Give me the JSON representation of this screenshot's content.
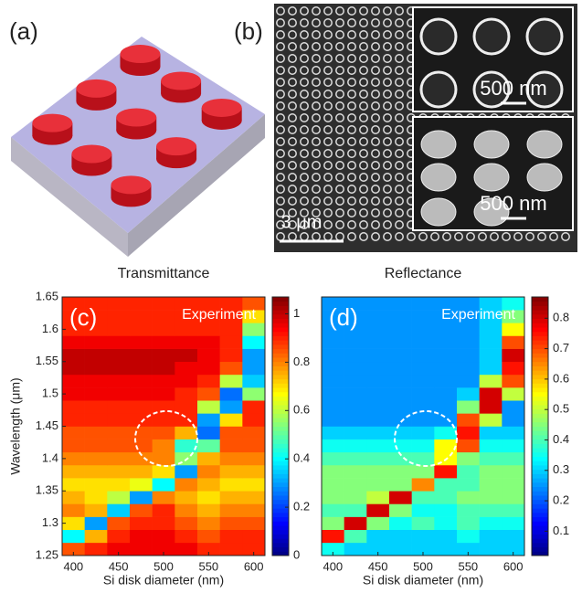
{
  "panels": {
    "a": {
      "label": "(a)"
    },
    "b": {
      "label": "(b)",
      "scale_bar": "3 μm",
      "inset_scale": [
        "500 nm",
        "500 nm"
      ]
    }
  },
  "chart_data": [
    {
      "type": "heatmap",
      "title": "Transmittance",
      "panel_label": "(c)",
      "annotation": "Experiment",
      "xlabel": "Si disk diameter (nm)",
      "ylabel": "Wavelength (μm)",
      "colormap": "jet",
      "x": [
        400,
        425,
        450,
        475,
        500,
        525,
        550,
        575,
        600
      ],
      "y": [
        1.26,
        1.28,
        1.3,
        1.32,
        1.34,
        1.36,
        1.38,
        1.4,
        1.42,
        1.44,
        1.46,
        1.48,
        1.5,
        1.52,
        1.54,
        1.56,
        1.58,
        1.6,
        1.62,
        1.64
      ],
      "z": [
        [
          0.85,
          0.9,
          0.95,
          0.95,
          0.95,
          0.95,
          0.9,
          0.9,
          0.9
        ],
        [
          0.4,
          0.75,
          0.9,
          0.95,
          0.95,
          0.9,
          0.85,
          0.9,
          0.9
        ],
        [
          0.7,
          0.3,
          0.85,
          0.9,
          0.9,
          0.85,
          0.8,
          0.85,
          0.85
        ],
        [
          0.8,
          0.75,
          0.35,
          0.85,
          0.9,
          0.8,
          0.75,
          0.8,
          0.8
        ],
        [
          0.75,
          0.7,
          0.6,
          0.3,
          0.8,
          0.75,
          0.7,
          0.75,
          0.75
        ],
        [
          0.7,
          0.7,
          0.7,
          0.65,
          0.4,
          0.8,
          0.75,
          0.7,
          0.7
        ],
        [
          0.75,
          0.75,
          0.75,
          0.75,
          0.7,
          0.3,
          0.8,
          0.75,
          0.75
        ],
        [
          0.8,
          0.8,
          0.8,
          0.8,
          0.8,
          0.55,
          0.75,
          0.8,
          0.8
        ],
        [
          0.85,
          0.85,
          0.85,
          0.85,
          0.8,
          0.45,
          0.5,
          0.85,
          0.85
        ],
        [
          0.85,
          0.85,
          0.85,
          0.85,
          0.85,
          0.75,
          0.25,
          0.85,
          0.85
        ],
        [
          0.9,
          0.9,
          0.9,
          0.9,
          0.9,
          0.9,
          0.3,
          0.7,
          0.9
        ],
        [
          0.9,
          0.9,
          0.9,
          0.9,
          0.9,
          0.9,
          0.6,
          0.3,
          0.9
        ],
        [
          0.95,
          0.95,
          0.95,
          0.95,
          0.95,
          0.9,
          0.85,
          0.25,
          0.55
        ],
        [
          0.95,
          0.95,
          0.95,
          0.95,
          0.95,
          0.95,
          0.9,
          0.6,
          0.35
        ],
        [
          1.0,
          1.0,
          1.0,
          1.0,
          1.0,
          0.95,
          0.95,
          0.85,
          0.3
        ],
        [
          1.0,
          1.0,
          1.0,
          1.0,
          1.0,
          1.0,
          0.95,
          0.9,
          0.3
        ],
        [
          0.95,
          0.95,
          0.95,
          0.95,
          0.95,
          0.95,
          0.95,
          0.9,
          0.4
        ],
        [
          0.9,
          0.9,
          0.9,
          0.9,
          0.9,
          0.9,
          0.9,
          0.9,
          0.55
        ],
        [
          0.9,
          0.9,
          0.9,
          0.9,
          0.9,
          0.9,
          0.9,
          0.9,
          0.7
        ],
        [
          0.9,
          0.9,
          0.9,
          0.9,
          0.9,
          0.9,
          0.9,
          0.9,
          0.85
        ]
      ],
      "xlim": [
        387.5,
        612.5
      ],
      "ylim": [
        1.25,
        1.65
      ],
      "xticks": [
        400,
        450,
        500,
        550,
        600
      ],
      "yticks": [
        1.25,
        1.3,
        1.35,
        1.4,
        1.45,
        1.5,
        1.55,
        1.6,
        1.65
      ],
      "clim": [
        0,
        1.07
      ],
      "cticks": [
        0,
        0.2,
        0.4,
        0.6,
        0.8,
        1
      ]
    },
    {
      "type": "heatmap",
      "title": "Reflectance",
      "panel_label": "(d)",
      "annotation": "Experiment",
      "xlabel": "Si disk diameter (nm)",
      "colormap": "jet",
      "x": [
        400,
        425,
        450,
        475,
        500,
        525,
        550,
        575,
        600
      ],
      "y": [
        1.26,
        1.28,
        1.3,
        1.32,
        1.34,
        1.36,
        1.38,
        1.4,
        1.42,
        1.44,
        1.46,
        1.48,
        1.5,
        1.52,
        1.54,
        1.56,
        1.58,
        1.6,
        1.62,
        1.64
      ],
      "z": [
        [
          0.35,
          0.3,
          0.3,
          0.3,
          0.3,
          0.3,
          0.3,
          0.3,
          0.3
        ],
        [
          0.75,
          0.4,
          0.3,
          0.3,
          0.3,
          0.3,
          0.35,
          0.3,
          0.3
        ],
        [
          0.45,
          0.8,
          0.45,
          0.35,
          0.4,
          0.35,
          0.4,
          0.35,
          0.35
        ],
        [
          0.4,
          0.4,
          0.8,
          0.45,
          0.35,
          0.35,
          0.4,
          0.4,
          0.4
        ],
        [
          0.45,
          0.45,
          0.5,
          0.8,
          0.4,
          0.4,
          0.45,
          0.45,
          0.45
        ],
        [
          0.45,
          0.45,
          0.45,
          0.45,
          0.65,
          0.4,
          0.4,
          0.45,
          0.45
        ],
        [
          0.45,
          0.45,
          0.45,
          0.45,
          0.45,
          0.75,
          0.4,
          0.45,
          0.45
        ],
        [
          0.4,
          0.4,
          0.4,
          0.4,
          0.4,
          0.55,
          0.45,
          0.4,
          0.4
        ],
        [
          0.35,
          0.35,
          0.35,
          0.35,
          0.35,
          0.55,
          0.7,
          0.35,
          0.35
        ],
        [
          0.3,
          0.3,
          0.3,
          0.3,
          0.3,
          0.35,
          0.75,
          0.3,
          0.3
        ],
        [
          0.25,
          0.25,
          0.25,
          0.25,
          0.25,
          0.25,
          0.7,
          0.5,
          0.25
        ],
        [
          0.25,
          0.25,
          0.25,
          0.25,
          0.25,
          0.25,
          0.45,
          0.8,
          0.25
        ],
        [
          0.25,
          0.25,
          0.25,
          0.25,
          0.25,
          0.25,
          0.3,
          0.8,
          0.5
        ],
        [
          0.25,
          0.25,
          0.25,
          0.25,
          0.25,
          0.25,
          0.25,
          0.5,
          0.7
        ],
        [
          0.25,
          0.25,
          0.25,
          0.25,
          0.25,
          0.25,
          0.25,
          0.3,
          0.75
        ],
        [
          0.25,
          0.25,
          0.25,
          0.25,
          0.25,
          0.25,
          0.25,
          0.3,
          0.8
        ],
        [
          0.25,
          0.25,
          0.25,
          0.25,
          0.25,
          0.25,
          0.25,
          0.3,
          0.7
        ],
        [
          0.25,
          0.25,
          0.25,
          0.25,
          0.25,
          0.25,
          0.25,
          0.3,
          0.55
        ],
        [
          0.25,
          0.25,
          0.25,
          0.25,
          0.25,
          0.25,
          0.25,
          0.3,
          0.45
        ],
        [
          0.25,
          0.25,
          0.25,
          0.25,
          0.25,
          0.25,
          0.25,
          0.3,
          0.35
        ]
      ],
      "xlim": [
        387.5,
        612.5
      ],
      "ylim": [
        1.25,
        1.65
      ],
      "xticks": [
        400,
        450,
        500,
        550,
        600
      ],
      "clim": [
        0.02,
        0.87
      ],
      "cticks": [
        0.1,
        0.2,
        0.3,
        0.4,
        0.5,
        0.6,
        0.7,
        0.8
      ]
    }
  ]
}
